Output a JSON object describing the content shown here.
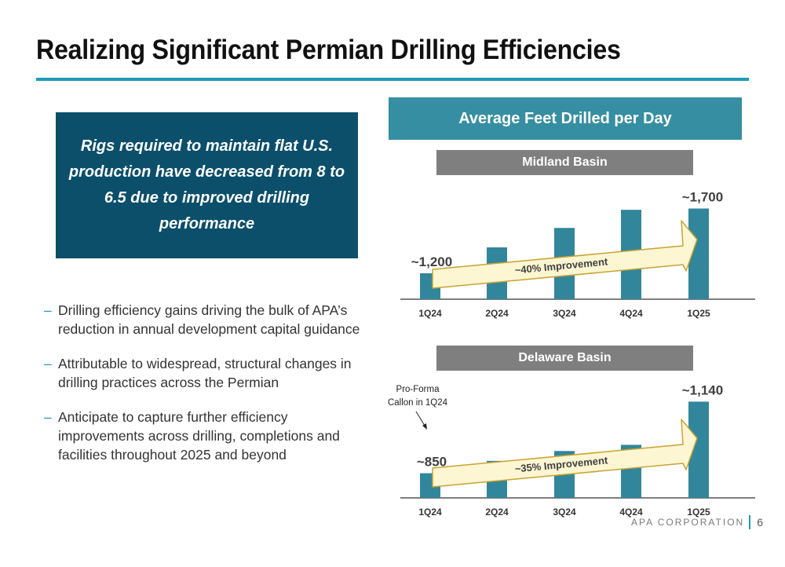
{
  "slide": {
    "title": "Realizing Significant Permian Drilling Efficiencies",
    "callout": "Rigs required to maintain flat U.S. production have decreased from 8 to 6.5 due to improved drilling performance",
    "bullets": [
      "Drilling efficiency gains driving the bulk of APA’s reduction in annual development capital guidance",
      "Attributable to widespread, structural changes in drilling practices across the Permian",
      "Anticipate to capture further efficiency improvements across drilling, completions and facilities throughout 2025 and beyond"
    ],
    "bullet_marker": "–",
    "chart_section_title": "Average Feet Drilled per Day",
    "footer": {
      "company": "APA CORPORATION",
      "page": "6"
    },
    "colors": {
      "accent": "#1e9ab8",
      "bar": "#31869b",
      "callout_bg": "#0b4f6b",
      "header_bg": "#368ea2",
      "basin_bg": "#7f7f7f",
      "arrow_fill": "#fdf6d3",
      "arrow_stroke": "#c9a332"
    }
  },
  "chart_data": [
    {
      "type": "bar",
      "title": "Midland Basin",
      "categories": [
        "1Q24",
        "2Q24",
        "3Q24",
        "4Q24",
        "1Q25"
      ],
      "values": [
        1200,
        1400,
        1550,
        1690,
        1700
      ],
      "ylim": [
        1000,
        1800
      ],
      "data_labels": {
        "first": "~1,200",
        "last": "~1,700"
      },
      "arrow_label": "~40% Improvement"
    },
    {
      "type": "bar",
      "title": "Delaware Basin",
      "categories": [
        "1Q24",
        "2Q24",
        "3Q24",
        "4Q24",
        "1Q25"
      ],
      "values": [
        850,
        900,
        940,
        965,
        1140
      ],
      "ylim": [
        750,
        1170
      ],
      "data_labels": {
        "first": "~850",
        "last": "~1,140"
      },
      "arrow_label": "~35% Improvement",
      "annotation": {
        "line1": "Pro-Forma",
        "line2": "Callon in 1Q24"
      }
    }
  ]
}
